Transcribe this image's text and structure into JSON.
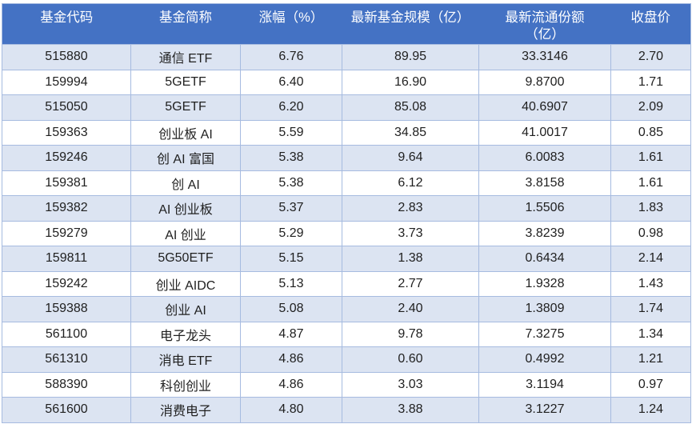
{
  "table": {
    "columns": [
      {
        "id": "fund-code",
        "lines": [
          "基金代码"
        ]
      },
      {
        "id": "fund-name",
        "lines": [
          "基金简称"
        ]
      },
      {
        "id": "change-pct",
        "lines": [
          "涨幅（%）"
        ]
      },
      {
        "id": "fund-scale",
        "lines": [
          "最新基金规模（亿）"
        ]
      },
      {
        "id": "circulating-shares",
        "lines": [
          "最新流通份额",
          "（亿）"
        ]
      },
      {
        "id": "close-price",
        "lines": [
          "收盘价"
        ]
      }
    ],
    "rows": [
      [
        "515880",
        "通信 ETF",
        "6.76",
        "89.95",
        "33.3146",
        "2.70"
      ],
      [
        "159994",
        "5GETF",
        "6.40",
        "16.90",
        "9.8700",
        "1.71"
      ],
      [
        "515050",
        "5GETF",
        "6.20",
        "85.08",
        "40.6907",
        "2.09"
      ],
      [
        "159363",
        "创业板 AI",
        "5.59",
        "34.85",
        "41.0017",
        "0.85"
      ],
      [
        "159246",
        "创 AI 富国",
        "5.38",
        "9.64",
        "6.0083",
        "1.61"
      ],
      [
        "159381",
        "创 AI",
        "5.38",
        "6.12",
        "3.8158",
        "1.61"
      ],
      [
        "159382",
        "AI 创业板",
        "5.37",
        "2.83",
        "1.5506",
        "1.83"
      ],
      [
        "159279",
        "AI 创业",
        "5.29",
        "3.73",
        "3.8239",
        "0.98"
      ],
      [
        "159811",
        "5G50ETF",
        "5.15",
        "1.38",
        "0.6434",
        "2.14"
      ],
      [
        "159242",
        "创业 AIDC",
        "5.13",
        "2.77",
        "1.9328",
        "1.43"
      ],
      [
        "159388",
        "创业 AI",
        "5.08",
        "2.40",
        "1.3809",
        "1.74"
      ],
      [
        "561100",
        "电子龙头",
        "4.87",
        "9.78",
        "7.3275",
        "1.34"
      ],
      [
        "561310",
        "消电 ETF",
        "4.86",
        "0.60",
        "0.4992",
        "1.21"
      ],
      [
        "588390",
        "科创创业",
        "4.86",
        "3.03",
        "3.1194",
        "0.97"
      ],
      [
        "561600",
        "消费电子",
        "4.80",
        "3.88",
        "3.1227",
        "1.24"
      ]
    ],
    "colors": {
      "header_bg": "#4472C4",
      "header_text": "#FFFFFF",
      "row_alt_bg": "#DCE4F2",
      "row_bg": "#FFFFFF",
      "border": "#A6BBE0",
      "body_text": "#1F1F1F"
    }
  }
}
